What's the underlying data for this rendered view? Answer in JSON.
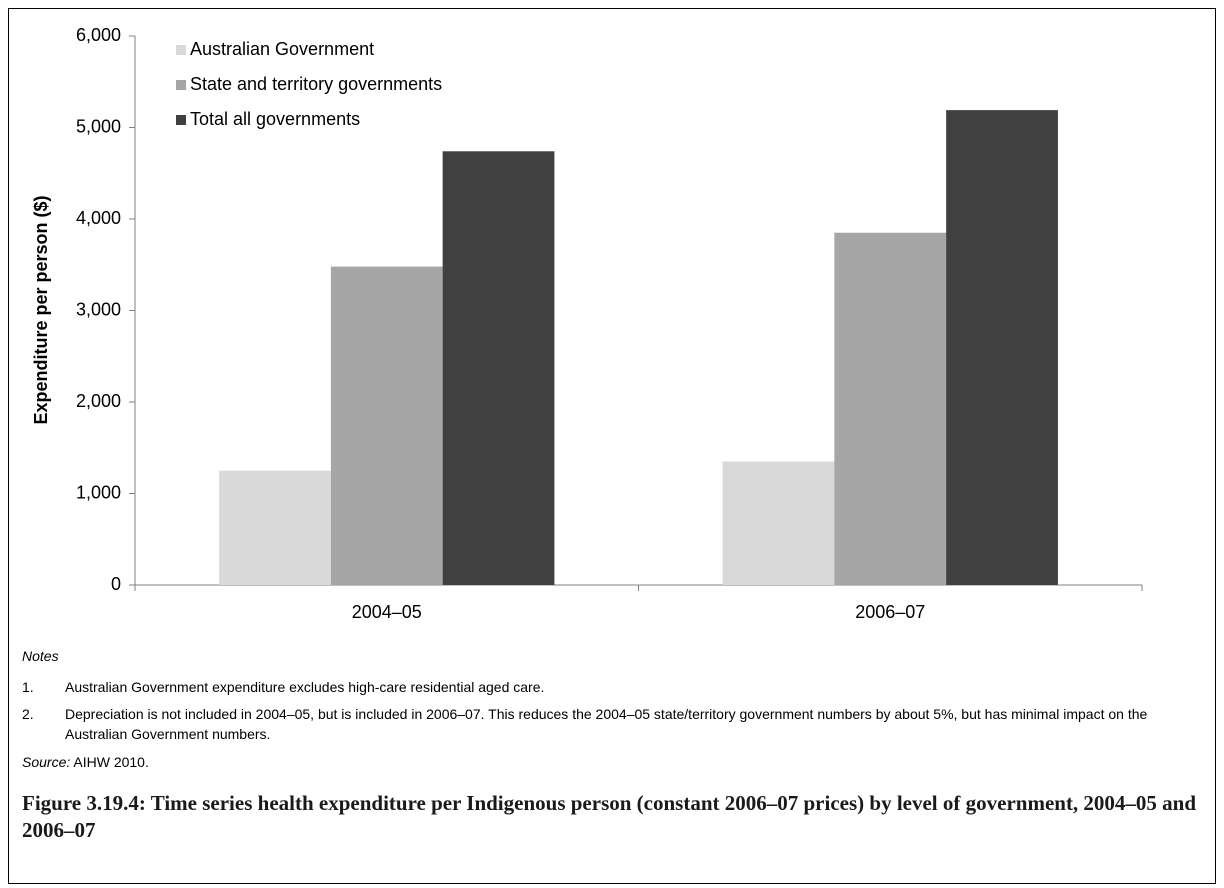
{
  "chart_data": {
    "type": "bar",
    "y_label": "Expenditure per person ($)",
    "categories": [
      "2004–05",
      "2006–07"
    ],
    "series": [
      {
        "name": "Australian Government",
        "color": "#d9d9d9",
        "values": [
          1250,
          1350
        ]
      },
      {
        "name": "State and territory governments",
        "color": "#a6a6a6",
        "values": [
          3480,
          3850
        ]
      },
      {
        "name": "Total all governments",
        "color": "#404040",
        "values": [
          4740,
          5190
        ]
      }
    ],
    "ylim": [
      0,
      6000
    ],
    "yticks": [
      0,
      {
        "value": 1000,
        "label": "1,000"
      },
      {
        "value": 2000,
        "label": "2,000"
      },
      {
        "value": 3000,
        "label": "3,000"
      },
      {
        "value": 4000,
        "label": "4,000"
      },
      {
        "value": 5000,
        "label": "5,000"
      },
      {
        "value": 6000,
        "label": "6,000"
      }
    ],
    "grid": false,
    "legend": "top-left"
  },
  "notes": {
    "heading": "Notes",
    "items": [
      {
        "number": "1.",
        "text": "Australian Government expenditure excludes high-care residential aged care."
      },
      {
        "number": "2.",
        "text": "Depreciation is not included in 2004–05, but is included in 2006–07. This reduces the 2004–05 state/territory government numbers by about 5%, but has minimal impact on the Australian Government numbers."
      }
    ]
  },
  "source": {
    "label": "Source:",
    "text": "AIHW 2010."
  },
  "caption": "Figure 3.19.4: Time series health expenditure per Indigenous person (constant 2006–07 prices) by level of government, 2004–05 and 2006–07"
}
